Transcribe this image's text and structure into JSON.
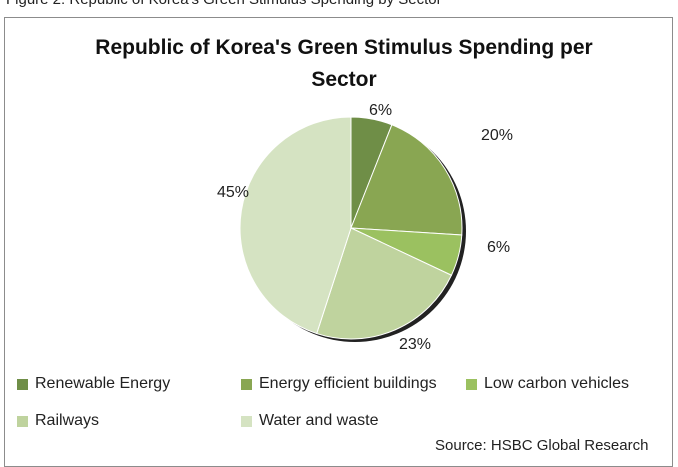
{
  "caption": "Figure 2: Republic of Korea's Green Stimulus Spending by Sector",
  "source": "Source: HSBC Global Research",
  "chart_data": {
    "type": "pie",
    "title": "Republic of Korea's Green Stimulus Spending per Sector",
    "categories": [
      "Renewable Energy",
      "Energy efficient buildings",
      "Low carbon vehicles",
      "Railways",
      "Water and waste"
    ],
    "values": [
      6,
      20,
      6,
      23,
      45
    ],
    "labels": [
      "6%",
      "20%",
      "6%",
      "23%",
      "45%"
    ],
    "unit": "%",
    "colors": [
      "#6f8e47",
      "#89a652",
      "#9bc160",
      "#bfd39e",
      "#d5e3c2"
    ],
    "legend_position": "bottom"
  }
}
